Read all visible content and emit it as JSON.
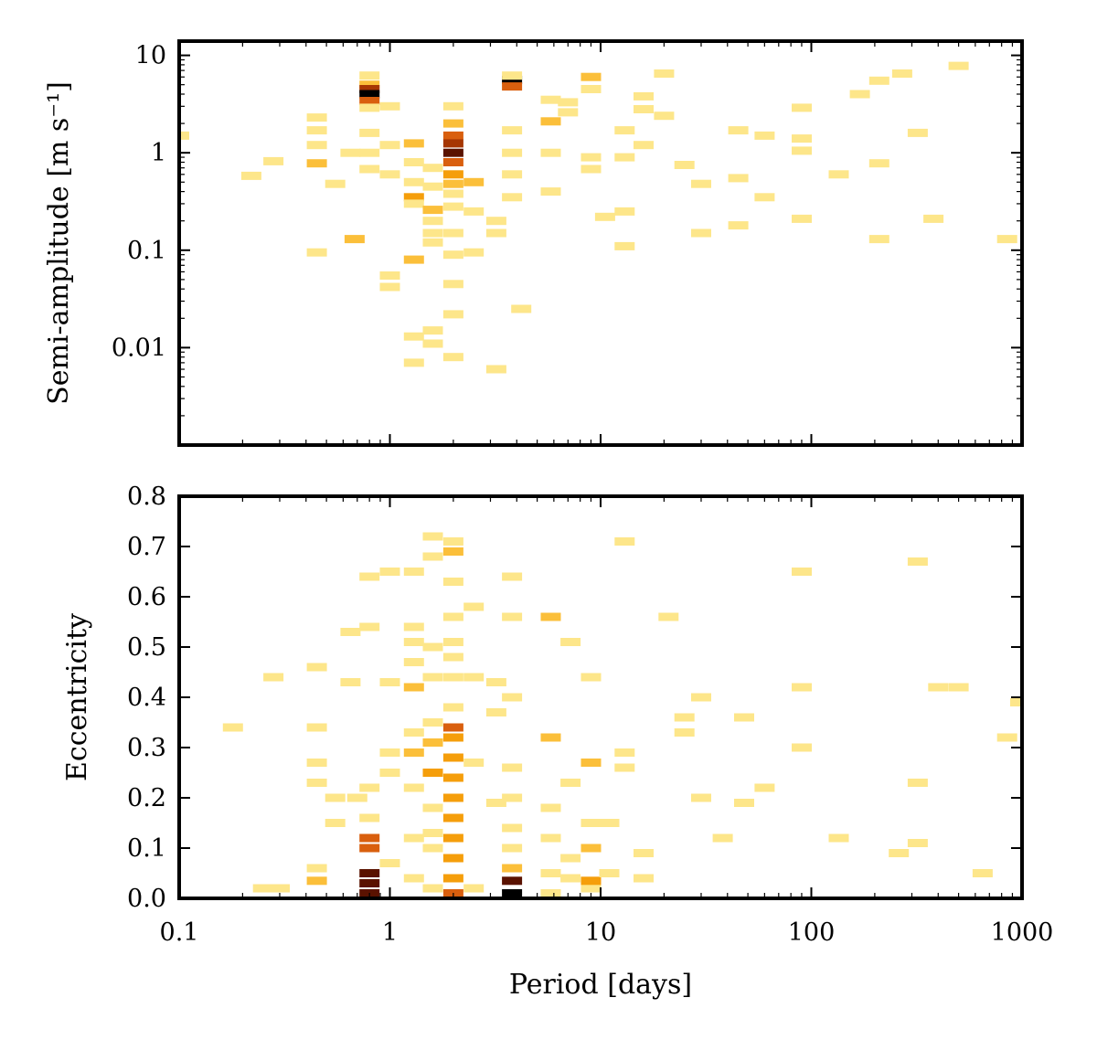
{
  "chart_data": [
    {
      "type": "heatmap",
      "panel": "top",
      "xlabel": "Period [days]",
      "ylabel": "Semi-amplitude [m s⁻¹]",
      "x_scale": "log",
      "y_scale": "log",
      "xlim": [
        0.1,
        1000
      ],
      "ylim": [
        0.001,
        14
      ],
      "x_ticks": [
        0.1,
        1,
        10,
        100,
        1000
      ],
      "y_ticks": [
        0.01,
        0.1,
        1,
        10
      ],
      "y_tick_labels": [
        "0.01",
        "0.1",
        "1",
        "10"
      ],
      "grid": false,
      "legend": "none",
      "colormap": [
        "#ffff99",
        "#fde68a",
        "#fbbf3a",
        "#f59e0b",
        "#d95f0e",
        "#a63603",
        "#5a1200",
        "#000000"
      ],
      "cells": [
        [
          0.8,
          6.2,
          1
        ],
        [
          0.8,
          5.0,
          2
        ],
        [
          0.8,
          4.5,
          5
        ],
        [
          0.8,
          4.0,
          7
        ],
        [
          0.8,
          3.4,
          4
        ],
        [
          0.8,
          2.9,
          1
        ],
        [
          0.8,
          1.0,
          1
        ],
        [
          0.8,
          1.6,
          1
        ],
        [
          0.8,
          0.68,
          1
        ],
        [
          2.0,
          3.0,
          1
        ],
        [
          2.0,
          2.0,
          2
        ],
        [
          2.0,
          1.5,
          4
        ],
        [
          2.0,
          1.25,
          5
        ],
        [
          2.0,
          1.0,
          6
        ],
        [
          2.0,
          0.8,
          4
        ],
        [
          2.0,
          0.6,
          3
        ],
        [
          2.0,
          0.48,
          2
        ],
        [
          2.0,
          0.38,
          1
        ],
        [
          2.0,
          0.28,
          1
        ],
        [
          2.0,
          0.15,
          1
        ],
        [
          2.0,
          0.09,
          1
        ],
        [
          2.0,
          0.045,
          1
        ],
        [
          2.0,
          0.022,
          1
        ],
        [
          2.0,
          0.008,
          1
        ],
        [
          3.8,
          5.6,
          7
        ],
        [
          3.8,
          4.8,
          4
        ],
        [
          3.8,
          6.2,
          1
        ],
        [
          3.8,
          1.7,
          1
        ],
        [
          3.8,
          1.0,
          1
        ],
        [
          3.8,
          0.6,
          1
        ],
        [
          3.8,
          0.35,
          1
        ],
        [
          0.45,
          2.3,
          1
        ],
        [
          0.45,
          1.7,
          1
        ],
        [
          0.45,
          1.2,
          1
        ],
        [
          0.45,
          0.78,
          2
        ],
        [
          0.45,
          0.095,
          1
        ],
        [
          0.28,
          0.82,
          1
        ],
        [
          0.22,
          0.58,
          1
        ],
        [
          0.55,
          0.48,
          1
        ],
        [
          0.65,
          1.0,
          1
        ],
        [
          0.68,
          0.13,
          2
        ],
        [
          1.0,
          3.0,
          1
        ],
        [
          1.0,
          1.2,
          1
        ],
        [
          1.0,
          0.6,
          1
        ],
        [
          1.0,
          0.055,
          1
        ],
        [
          1.0,
          0.042,
          1
        ],
        [
          1.3,
          1.25,
          2
        ],
        [
          1.3,
          0.8,
          1
        ],
        [
          1.3,
          0.5,
          1
        ],
        [
          1.3,
          0.35,
          3
        ],
        [
          1.3,
          0.3,
          1
        ],
        [
          1.3,
          0.08,
          2
        ],
        [
          1.3,
          0.013,
          1
        ],
        [
          1.3,
          0.007,
          1
        ],
        [
          1.6,
          0.7,
          1
        ],
        [
          1.6,
          0.45,
          1
        ],
        [
          1.6,
          0.26,
          2
        ],
        [
          1.6,
          0.2,
          1
        ],
        [
          1.6,
          0.15,
          1
        ],
        [
          1.6,
          0.12,
          1
        ],
        [
          1.6,
          0.015,
          1
        ],
        [
          1.6,
          0.011,
          1
        ],
        [
          2.5,
          0.5,
          2
        ],
        [
          2.5,
          0.25,
          1
        ],
        [
          2.5,
          0.095,
          1
        ],
        [
          3.2,
          0.2,
          1
        ],
        [
          3.2,
          0.15,
          1
        ],
        [
          3.2,
          0.006,
          1
        ],
        [
          4.2,
          0.025,
          1
        ],
        [
          5.8,
          2.1,
          2
        ],
        [
          5.8,
          3.5,
          1
        ],
        [
          5.8,
          1.0,
          1
        ],
        [
          5.8,
          0.4,
          1
        ],
        [
          9.0,
          6.0,
          2
        ],
        [
          9.0,
          4.5,
          1
        ],
        [
          9.0,
          0.9,
          1
        ],
        [
          9.0,
          0.68,
          1
        ],
        [
          7.0,
          2.6,
          1
        ],
        [
          7.0,
          3.3,
          1
        ],
        [
          13.0,
          1.7,
          1
        ],
        [
          13.0,
          0.9,
          1
        ],
        [
          13.0,
          0.25,
          1
        ],
        [
          13.0,
          0.11,
          1
        ],
        [
          10.5,
          0.22,
          1
        ],
        [
          16.0,
          3.8,
          1
        ],
        [
          16.0,
          2.8,
          1
        ],
        [
          16.0,
          1.2,
          1
        ],
        [
          20.0,
          6.5,
          1
        ],
        [
          20.0,
          2.4,
          1
        ],
        [
          25.0,
          0.75,
          1
        ],
        [
          30.0,
          0.48,
          1
        ],
        [
          30.0,
          0.15,
          1
        ],
        [
          45.0,
          1.7,
          1
        ],
        [
          45.0,
          0.55,
          1
        ],
        [
          45.0,
          0.18,
          1
        ],
        [
          60.0,
          1.5,
          1
        ],
        [
          60.0,
          0.35,
          1
        ],
        [
          90.0,
          2.9,
          1
        ],
        [
          90.0,
          1.4,
          1
        ],
        [
          90.0,
          1.05,
          1
        ],
        [
          90.0,
          0.21,
          1
        ],
        [
          135.0,
          0.6,
          1
        ],
        [
          170.0,
          4.0,
          1
        ],
        [
          210.0,
          5.5,
          1
        ],
        [
          210.0,
          0.78,
          1
        ],
        [
          210.0,
          0.13,
          1
        ],
        [
          270.0,
          6.5,
          1
        ],
        [
          320.0,
          1.6,
          1
        ],
        [
          380.0,
          0.21,
          1
        ],
        [
          500.0,
          7.8,
          1
        ],
        [
          850.0,
          0.13,
          1
        ],
        [
          0.1,
          1.5,
          1
        ]
      ]
    },
    {
      "type": "heatmap",
      "panel": "bottom",
      "xlabel": "Period [days]",
      "ylabel": "Eccentricity",
      "x_scale": "log",
      "y_scale": "linear",
      "xlim": [
        0.1,
        1000
      ],
      "ylim": [
        0.0,
        0.8
      ],
      "x_ticks": [
        0.1,
        1,
        10,
        100,
        1000
      ],
      "x_tick_labels": [
        "0.1",
        "1",
        "10",
        "100",
        "1000"
      ],
      "y_ticks": [
        0.0,
        0.1,
        0.2,
        0.3,
        0.4,
        0.5,
        0.6,
        0.7,
        0.8
      ],
      "y_tick_labels": [
        "0.0",
        "0.1",
        "0.2",
        "0.3",
        "0.4",
        "0.5",
        "0.6",
        "0.7",
        "0.8"
      ],
      "grid": false,
      "legend": "none",
      "cells": [
        [
          0.8,
          0.01,
          6
        ],
        [
          0.8,
          0.03,
          6
        ],
        [
          0.8,
          0.05,
          6
        ],
        [
          0.8,
          0.1,
          4
        ],
        [
          0.8,
          0.12,
          4
        ],
        [
          0.8,
          0.16,
          1
        ],
        [
          0.8,
          0.22,
          1
        ],
        [
          0.8,
          0.54,
          1
        ],
        [
          0.8,
          0.64,
          1
        ],
        [
          2.0,
          0.01,
          4
        ],
        [
          2.0,
          0.04,
          3
        ],
        [
          2.0,
          0.08,
          3
        ],
        [
          2.0,
          0.12,
          3
        ],
        [
          2.0,
          0.16,
          3
        ],
        [
          2.0,
          0.2,
          3
        ],
        [
          2.0,
          0.24,
          3
        ],
        [
          2.0,
          0.28,
          3
        ],
        [
          2.0,
          0.32,
          3
        ],
        [
          2.0,
          0.34,
          4
        ],
        [
          2.0,
          0.38,
          1
        ],
        [
          2.0,
          0.44,
          1
        ],
        [
          2.0,
          0.48,
          1
        ],
        [
          2.0,
          0.51,
          1
        ],
        [
          2.0,
          0.56,
          1
        ],
        [
          2.0,
          0.63,
          1
        ],
        [
          2.0,
          0.69,
          2
        ],
        [
          2.0,
          0.71,
          1
        ],
        [
          3.8,
          0.01,
          7
        ],
        [
          3.8,
          0.035,
          6
        ],
        [
          3.8,
          0.06,
          2
        ],
        [
          3.8,
          0.1,
          1
        ],
        [
          3.8,
          0.14,
          1
        ],
        [
          3.8,
          0.2,
          1
        ],
        [
          3.8,
          0.26,
          1
        ],
        [
          3.8,
          0.4,
          1
        ],
        [
          3.8,
          0.56,
          1
        ],
        [
          3.8,
          0.64,
          1
        ],
        [
          0.45,
          0.035,
          2
        ],
        [
          0.45,
          0.06,
          1
        ],
        [
          0.45,
          0.23,
          1
        ],
        [
          0.45,
          0.27,
          1
        ],
        [
          0.45,
          0.34,
          1
        ],
        [
          0.45,
          0.46,
          1
        ],
        [
          0.25,
          0.02,
          1
        ],
        [
          0.3,
          0.02,
          1
        ],
        [
          0.28,
          0.44,
          1
        ],
        [
          0.18,
          0.34,
          1
        ],
        [
          0.55,
          0.2,
          1
        ],
        [
          0.55,
          0.15,
          1
        ],
        [
          0.65,
          0.43,
          1
        ],
        [
          0.65,
          0.53,
          1
        ],
        [
          0.7,
          0.2,
          1
        ],
        [
          1.0,
          0.07,
          1
        ],
        [
          1.0,
          0.25,
          1
        ],
        [
          1.0,
          0.29,
          1
        ],
        [
          1.0,
          0.43,
          1
        ],
        [
          1.0,
          0.65,
          1
        ],
        [
          1.3,
          0.04,
          1
        ],
        [
          1.3,
          0.12,
          1
        ],
        [
          1.3,
          0.22,
          1
        ],
        [
          1.3,
          0.29,
          2
        ],
        [
          1.3,
          0.33,
          1
        ],
        [
          1.3,
          0.42,
          2
        ],
        [
          1.3,
          0.47,
          1
        ],
        [
          1.3,
          0.51,
          1
        ],
        [
          1.3,
          0.54,
          1
        ],
        [
          1.3,
          0.65,
          1
        ],
        [
          1.6,
          0.02,
          1
        ],
        [
          1.6,
          0.1,
          1
        ],
        [
          1.6,
          0.13,
          1
        ],
        [
          1.6,
          0.18,
          1
        ],
        [
          1.6,
          0.25,
          3
        ],
        [
          1.6,
          0.31,
          2
        ],
        [
          1.6,
          0.35,
          1
        ],
        [
          1.6,
          0.44,
          1
        ],
        [
          1.6,
          0.5,
          1
        ],
        [
          1.6,
          0.68,
          1
        ],
        [
          1.6,
          0.72,
          1
        ],
        [
          2.5,
          0.02,
          1
        ],
        [
          2.5,
          0.27,
          1
        ],
        [
          2.5,
          0.44,
          1
        ],
        [
          2.5,
          0.58,
          1
        ],
        [
          3.2,
          0.19,
          1
        ],
        [
          3.2,
          0.37,
          1
        ],
        [
          3.2,
          0.43,
          1
        ],
        [
          5.8,
          0.01,
          1
        ],
        [
          5.8,
          0.05,
          1
        ],
        [
          5.8,
          0.12,
          1
        ],
        [
          5.8,
          0.18,
          1
        ],
        [
          5.8,
          0.32,
          2
        ],
        [
          5.8,
          0.56,
          2
        ],
        [
          7.2,
          0.04,
          1
        ],
        [
          7.2,
          0.08,
          1
        ],
        [
          7.2,
          0.23,
          1
        ],
        [
          7.2,
          0.51,
          1
        ],
        [
          9.0,
          0.02,
          1
        ],
        [
          9.0,
          0.035,
          3
        ],
        [
          9.0,
          0.1,
          2
        ],
        [
          9.0,
          0.15,
          1
        ],
        [
          9.0,
          0.27,
          2
        ],
        [
          9.0,
          0.44,
          1
        ],
        [
          11.0,
          0.05,
          1
        ],
        [
          11.0,
          0.15,
          1
        ],
        [
          13.0,
          0.26,
          1
        ],
        [
          13.0,
          0.29,
          1
        ],
        [
          13.0,
          0.71,
          1
        ],
        [
          16.0,
          0.04,
          1
        ],
        [
          16.0,
          0.09,
          1
        ],
        [
          21.0,
          0.56,
          1
        ],
        [
          25.0,
          0.33,
          1
        ],
        [
          25.0,
          0.36,
          1
        ],
        [
          30.0,
          0.2,
          1
        ],
        [
          30.0,
          0.4,
          1
        ],
        [
          38.0,
          0.12,
          1
        ],
        [
          48.0,
          0.19,
          1
        ],
        [
          48.0,
          0.36,
          1
        ],
        [
          60.0,
          0.22,
          1
        ],
        [
          90.0,
          0.3,
          1
        ],
        [
          90.0,
          0.42,
          1
        ],
        [
          90.0,
          0.65,
          1
        ],
        [
          135.0,
          0.12,
          1
        ],
        [
          260.0,
          0.09,
          1
        ],
        [
          320.0,
          0.11,
          1
        ],
        [
          320.0,
          0.23,
          1
        ],
        [
          320.0,
          0.67,
          1
        ],
        [
          400.0,
          0.42,
          1
        ],
        [
          500.0,
          0.42,
          1
        ],
        [
          650.0,
          0.05,
          1
        ],
        [
          850.0,
          0.32,
          1
        ],
        [
          980.0,
          0.39,
          1
        ]
      ]
    }
  ]
}
